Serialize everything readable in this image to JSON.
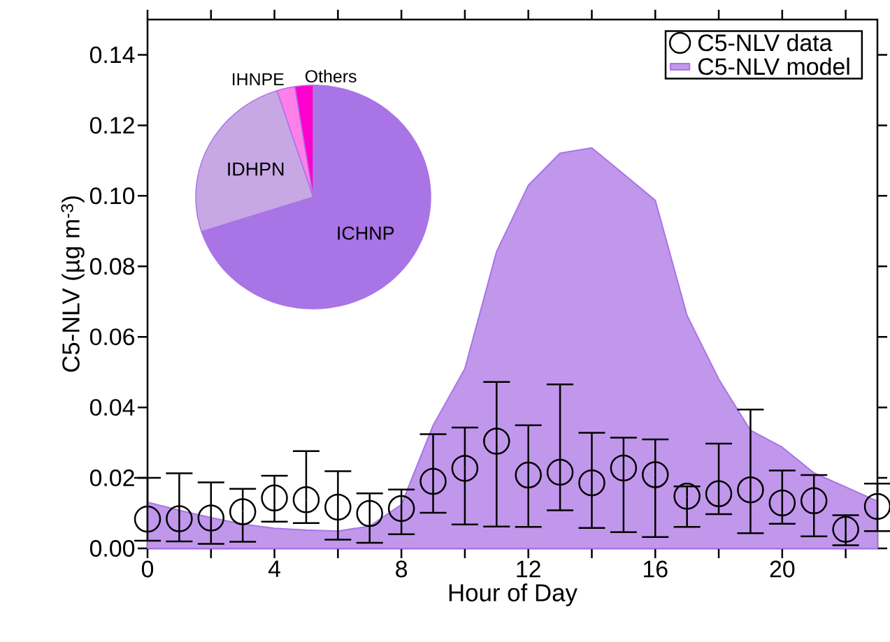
{
  "chart_data": [
    {
      "type": "area",
      "xlabel": "Hour of Day",
      "ylabel": "C5-NLV (µg m$^{-3}$)",
      "x": [
        0,
        1,
        2,
        3,
        4,
        5,
        6,
        7,
        8,
        9,
        10,
        11,
        12,
        13,
        14,
        15,
        16,
        17,
        18,
        19,
        20,
        21,
        22,
        23
      ],
      "xlim": [
        0,
        23
      ],
      "ylim": [
        0,
        0.15
      ],
      "xticks": [
        0,
        {
          "value": 2,
          "label": null
        },
        4,
        {
          "value": 6,
          "label": null
        },
        8,
        {
          "value": 10,
          "label": null
        },
        12,
        {
          "value": 14,
          "label": null
        },
        16,
        {
          "value": 18,
          "label": null
        },
        20,
        {
          "value": 22,
          "label": null
        }
      ],
      "yticks": [
        {
          "value": 0,
          "label": "0.00"
        },
        {
          "value": 0.02,
          "label": "0.02"
        },
        {
          "value": 0.04,
          "label": "0.04"
        },
        {
          "value": 0.06,
          "label": "0.06"
        },
        {
          "value": 0.08,
          "label": "0.08"
        },
        {
          "value": 0.1,
          "label": "0.10"
        },
        {
          "value": 0.12,
          "label": "0.12"
        },
        {
          "value": 0.14,
          "label": "0.14"
        }
      ],
      "legend": "top right",
      "series": [
        {
          "name": "C5-NLV data",
          "type": "scatter",
          "marker": "circle",
          "color": "#000000",
          "values": [
            0.0083,
            0.0084,
            0.0086,
            0.0104,
            0.0143,
            0.0138,
            0.0117,
            0.0099,
            0.0113,
            0.019,
            0.0227,
            0.0304,
            0.0208,
            0.0216,
            0.0186,
            0.0228,
            0.0209,
            0.0148,
            0.0155,
            0.0166,
            0.0129,
            0.0135,
            0.0054,
            0.0119
          ],
          "errors": [
            [
              0.0022,
              0.02
            ],
            [
              0.002,
              0.0213
            ],
            [
              0.0013,
              0.0187
            ],
            [
              0.0019,
              0.0169
            ],
            [
              0.0076,
              0.0206
            ],
            [
              0.0072,
              0.0276
            ],
            [
              0.0025,
              0.0219
            ],
            [
              0.0016,
              0.0156
            ],
            [
              0.004,
              0.0167
            ],
            [
              0.0101,
              0.0324
            ],
            [
              0.0068,
              0.0343
            ],
            [
              0.0062,
              0.0472
            ],
            [
              0.0061,
              0.0349
            ],
            [
              0.0108,
              0.0465
            ],
            [
              0.0058,
              0.0328
            ],
            [
              0.0046,
              0.0314
            ],
            [
              0.0032,
              0.0309
            ],
            [
              0.0061,
              0.0176
            ],
            [
              0.0097,
              0.0297
            ],
            [
              0.0043,
              0.0394
            ],
            [
              0.007,
              0.0221
            ],
            [
              0.0034,
              0.0208
            ],
            [
              0.0009,
              0.0094
            ],
            [
              0.0049,
              0.0184
            ]
          ]
        },
        {
          "name": "C5-NLV model",
          "type": "area",
          "color": "#c197ec",
          "values": [
            0.0131,
            0.0108,
            0.0087,
            0.0069,
            0.0057,
            0.0052,
            0.0049,
            0.0063,
            0.0124,
            0.0349,
            0.051,
            0.0842,
            0.103,
            0.1121,
            0.1136,
            0.1062,
            0.0987,
            0.0661,
            0.048,
            0.0335,
            0.0287,
            0.0214,
            0.0174,
            0.0134
          ]
        }
      ]
    },
    {
      "type": "pie",
      "categories": [
        "ICHNP",
        "IDHPN",
        "IHNPE",
        "Others"
      ],
      "values": [
        70,
        25,
        2.5,
        2.5
      ],
      "colors": [
        "#a974e5",
        "#c7a8e5",
        "#ff80e8",
        "#ff00cc"
      ]
    }
  ]
}
